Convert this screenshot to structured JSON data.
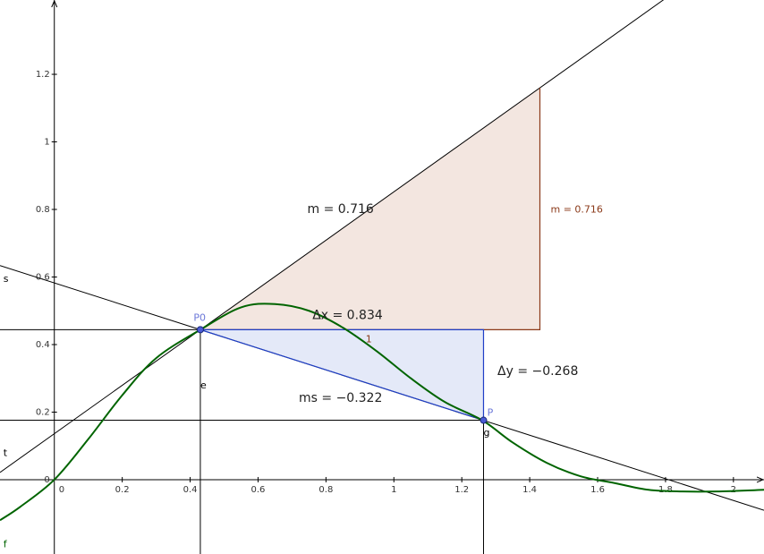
{
  "chart_data": {
    "type": "line",
    "title": "",
    "xlabel": "",
    "ylabel": "",
    "xlim": [
      -0.16,
      2.09
    ],
    "ylim": [
      -0.22,
      1.42
    ],
    "grid": false,
    "x_ticks": [
      {
        "value": 0,
        "label": "0"
      },
      {
        "value": 0.2,
        "label": "0.2"
      },
      {
        "value": 0.4,
        "label": "0.4"
      },
      {
        "value": 0.6,
        "label": "0.6"
      },
      {
        "value": 0.8,
        "label": "0.8"
      },
      {
        "value": 1.0,
        "label": "1"
      },
      {
        "value": 1.2,
        "label": "1.2"
      },
      {
        "value": 1.4,
        "label": "1.4"
      },
      {
        "value": 1.6,
        "label": "1.6"
      },
      {
        "value": 1.8,
        "label": "1.8"
      },
      {
        "value": 2.0,
        "label": "2"
      }
    ],
    "y_ticks": [
      {
        "value": 0,
        "label": "0"
      },
      {
        "value": 0.2,
        "label": "0.2"
      },
      {
        "value": 0.4,
        "label": "0.4"
      },
      {
        "value": 0.6,
        "label": "0.6"
      },
      {
        "value": 0.8,
        "label": "0.8"
      },
      {
        "value": 1.0,
        "label": "1"
      },
      {
        "value": 1.2,
        "label": "1.2"
      }
    ],
    "curve": {
      "name": "f",
      "color": "#006400",
      "x": [
        -0.16,
        -0.1,
        0,
        0.1,
        0.2,
        0.3,
        0.43,
        0.55,
        0.65,
        0.75,
        0.85,
        0.95,
        1.05,
        1.15,
        1.26,
        1.35,
        1.45,
        1.55,
        1.65,
        1.75,
        1.85,
        1.95,
        2.09
      ],
      "y": [
        -0.12,
        -0.08,
        0.0,
        0.12,
        0.25,
        0.36,
        0.444,
        0.51,
        0.52,
        0.5,
        0.45,
        0.38,
        0.3,
        0.23,
        0.176,
        0.11,
        0.05,
        0.01,
        -0.01,
        -0.03,
        -0.035,
        -0.035,
        -0.03
      ]
    },
    "points": [
      {
        "name": "P0",
        "x": 0.43,
        "y": 0.444,
        "color": "#4a5bd6"
      },
      {
        "name": "P",
        "x": 1.264,
        "y": 0.176,
        "color": "#4a5bd6"
      }
    ],
    "tangent_line": {
      "name": "t",
      "slope": 0.716,
      "point": [
        0.43,
        0.444
      ]
    },
    "secant_line": {
      "name": "s",
      "slope": -0.322,
      "point": [
        0.43,
        0.444
      ]
    },
    "vertical_lines": [
      {
        "name": "e",
        "x": 0.43
      },
      {
        "name": "g",
        "x": 1.264
      }
    ],
    "horizontal_lines": [
      {
        "y": 0.444,
        "x_from": -0.16,
        "x_to": 0.43
      },
      {
        "y": 0.176,
        "x_from": -0.16,
        "x_to": 1.264
      }
    ],
    "slope_triangle": {
      "x_from": 0.43,
      "x_to": 1.43,
      "y_base": 0.444,
      "slope": 0.716,
      "fill": "#f3e6e0",
      "stroke": "#8b3a1a",
      "run_label": "1",
      "rise_label": "m = 0.716"
    },
    "secant_triangle": {
      "x_from": 0.43,
      "x_to": 1.264,
      "y_top": 0.444,
      "y_bottom": 0.176,
      "fill": "#e4e9f8",
      "stroke": "#2040c8"
    },
    "annotations": [
      {
        "text": "m  =  0.716",
        "x": 0.745,
        "y": 0.79
      },
      {
        "text": "Δx  =  0.834",
        "x": 0.76,
        "y": 0.475
      },
      {
        "text": "Δy  =  −0.268",
        "x": 1.305,
        "y": 0.31
      },
      {
        "text": "ms  =  −0.322",
        "x": 0.72,
        "y": 0.23
      }
    ],
    "object_labels": [
      {
        "text": "s",
        "x": -0.15,
        "y": 0.585,
        "color": "#000000"
      },
      {
        "text": "t",
        "x": -0.15,
        "y": 0.07,
        "color": "#000000"
      },
      {
        "text": "f",
        "x": -0.15,
        "y": -0.2,
        "color": "#006400"
      },
      {
        "text": "e",
        "x": 0.43,
        "y": 0.27,
        "color": "#000000"
      },
      {
        "text": "g",
        "x": 1.264,
        "y": 0.13,
        "color": "#000000"
      },
      {
        "text": "P0",
        "x": 0.41,
        "y": 0.47,
        "color": "#6c78d8"
      },
      {
        "text": "P",
        "x": 1.275,
        "y": 0.19,
        "color": "#6c78d8"
      }
    ]
  }
}
